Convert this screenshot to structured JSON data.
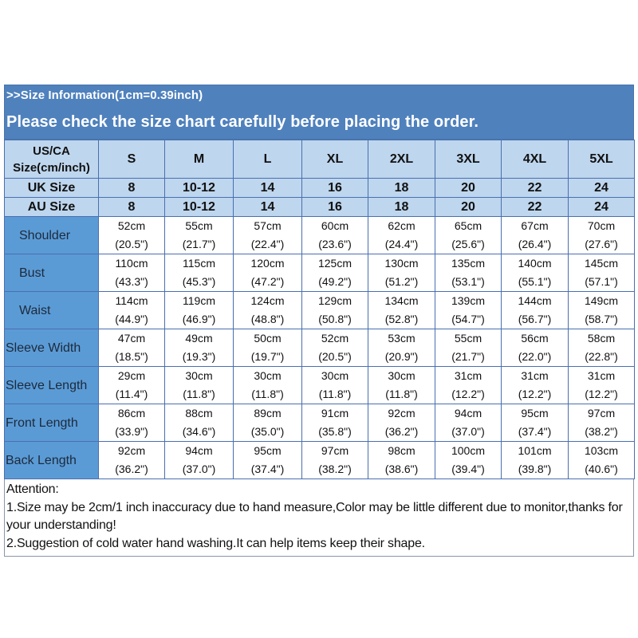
{
  "banner": {
    "title": ">>Size Information(1cm=0.39inch)",
    "subtitle": "Please check the size chart carefully before placing the order."
  },
  "colors": {
    "banner_bg": "#4f81bd",
    "header_bg": "#bed6ee",
    "row_label_bg": "#5b9bd5",
    "grid_border": "#4a6fb0"
  },
  "table": {
    "size_header": {
      "label": "US/CA Size(cm/inch)",
      "label_line1": "US/CA",
      "label_line2": "Size(cm/inch)",
      "sizes": [
        "S",
        "M",
        "L",
        "XL",
        "2XL",
        "3XL",
        "4XL",
        "5XL"
      ]
    },
    "uk": {
      "label": "UK Size",
      "values": [
        "8",
        "10-12",
        "14",
        "16",
        "18",
        "20",
        "22",
        "24"
      ]
    },
    "au": {
      "label": "AU Size",
      "values": [
        "8",
        "10-12",
        "14",
        "16",
        "18",
        "20",
        "22",
        "24"
      ]
    },
    "measurements": [
      {
        "label": "Shoulder",
        "cm": [
          "52cm",
          "55cm",
          "57cm",
          "60cm",
          "62cm",
          "65cm",
          "67cm",
          "70cm"
        ],
        "inch": [
          "(20.5\")",
          "(21.7\")",
          "(22.4\")",
          "(23.6\")",
          "(24.4\")",
          "(25.6\")",
          "(26.4\")",
          "(27.6\")"
        ]
      },
      {
        "label": "Bust",
        "cm": [
          "110cm",
          "115cm",
          "120cm",
          "125cm",
          "130cm",
          "135cm",
          "140cm",
          "145cm"
        ],
        "inch": [
          "(43.3\")",
          "(45.3\")",
          "(47.2\")",
          "(49.2\")",
          "(51.2\")",
          "(53.1\")",
          "(55.1\")",
          "(57.1\")"
        ]
      },
      {
        "label": "Waist",
        "cm": [
          "114cm",
          "119cm",
          "124cm",
          "129cm",
          "134cm",
          "139cm",
          "144cm",
          "149cm"
        ],
        "inch": [
          "(44.9\")",
          "(46.9\")",
          "(48.8\")",
          "(50.8\")",
          "(52.8\")",
          "(54.7\")",
          "(56.7\")",
          "(58.7\")"
        ]
      },
      {
        "label": "Sleeve Width",
        "cm": [
          "47cm",
          "49cm",
          "50cm",
          "52cm",
          "53cm",
          "55cm",
          "56cm",
          "58cm"
        ],
        "inch": [
          "(18.5\")",
          "(19.3\")",
          "(19.7\")",
          "(20.5\")",
          "(20.9\")",
          "(21.7\")",
          "(22.0\")",
          "(22.8\")"
        ]
      },
      {
        "label": "Sleeve Length",
        "cm": [
          "29cm",
          "30cm",
          "30cm",
          "30cm",
          "30cm",
          "31cm",
          "31cm",
          "31cm"
        ],
        "inch": [
          "(11.4\")",
          "(11.8\")",
          "(11.8\")",
          "(11.8\")",
          "(11.8\")",
          "(12.2\")",
          "(12.2\")",
          "(12.2\")"
        ]
      },
      {
        "label": "Front Length",
        "cm": [
          "86cm",
          "88cm",
          "89cm",
          "91cm",
          "92cm",
          "94cm",
          "95cm",
          "97cm"
        ],
        "inch": [
          "(33.9\")",
          "(34.6\")",
          "(35.0\")",
          "(35.8\")",
          "(36.2\")",
          "(37.0\")",
          "(37.4\")",
          "(38.2\")"
        ]
      },
      {
        "label": "Back Length",
        "cm": [
          "92cm",
          "94cm",
          "95cm",
          "97cm",
          "98cm",
          "100cm",
          "101cm",
          "103cm"
        ],
        "inch": [
          "(36.2\")",
          "(37.0\")",
          "(37.4\")",
          "(38.2\")",
          "(38.6\")",
          "(39.4\")",
          "(39.8\")",
          "(40.6\")"
        ]
      }
    ]
  },
  "attention": {
    "heading": "Attention:",
    "note1": "1.Size may be 2cm/1 inch inaccuracy due to hand measure,Color may be little different due to monitor,thanks for your understanding!",
    "note2": "2.Suggestion of cold water hand washing.It can help items keep their shape."
  }
}
